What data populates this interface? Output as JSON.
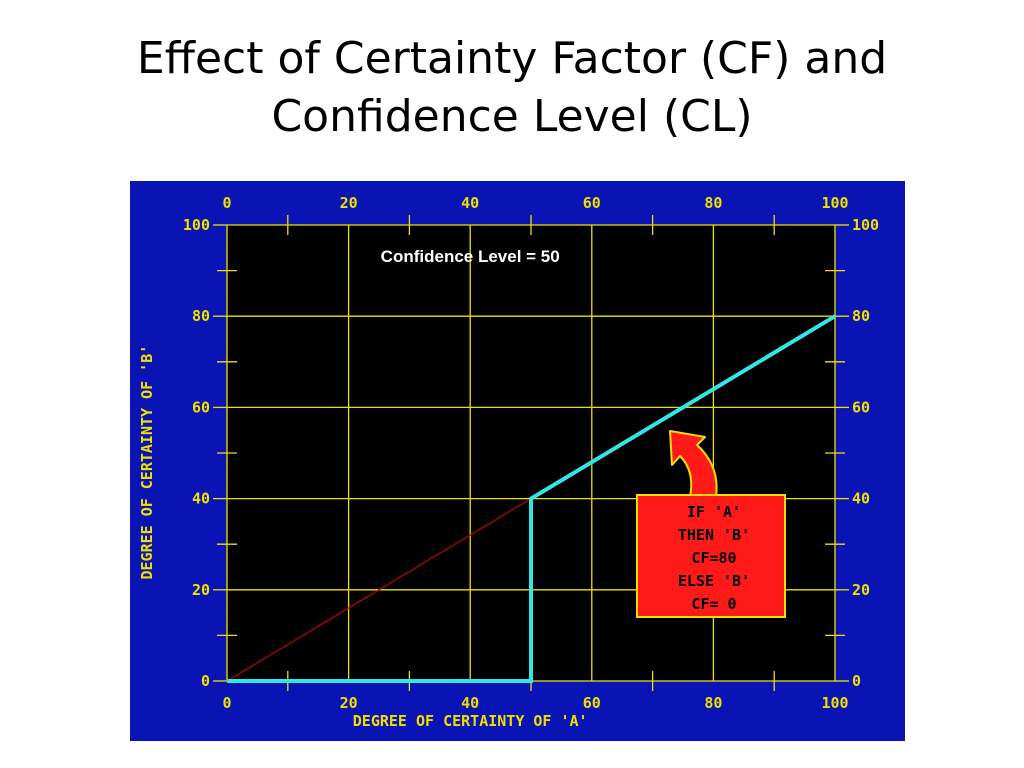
{
  "title_lines": [
    "Effect of Certainty Factor (CF) and",
    "Confidence Level (CL)"
  ],
  "chart_data": {
    "type": "line",
    "annotation": "Confidence Level = 50",
    "xlabel": "DEGREE OF CERTAINTY OF 'A'",
    "ylabel": "DEGREE OF CERTAINTY OF 'B'",
    "xlim": [
      0,
      100
    ],
    "ylim": [
      0,
      100
    ],
    "x_ticks": [
      "0",
      "20",
      "40",
      "60",
      "80",
      "100"
    ],
    "y_ticks": [
      "0",
      "20",
      "40",
      "60",
      "80",
      "100"
    ],
    "grid": true,
    "series": [
      {
        "color": "#c00000",
        "x": [
          0,
          50
        ],
        "y": [
          0,
          40
        ]
      },
      {
        "color": "#33e6e6",
        "x": [
          0,
          50,
          50,
          100
        ],
        "y": [
          0,
          0,
          40,
          80
        ]
      }
    ],
    "rule_box": [
      "IF 'A'",
      "THEN 'B'",
      "CF=80",
      "ELSE 'B'",
      "CF= 0"
    ],
    "colors": {
      "background": "#0a14b4",
      "plot": "#000000",
      "grid": "#f0e000",
      "axis_text": "#f0e000",
      "rule_box": "#ff1a1a"
    }
  }
}
